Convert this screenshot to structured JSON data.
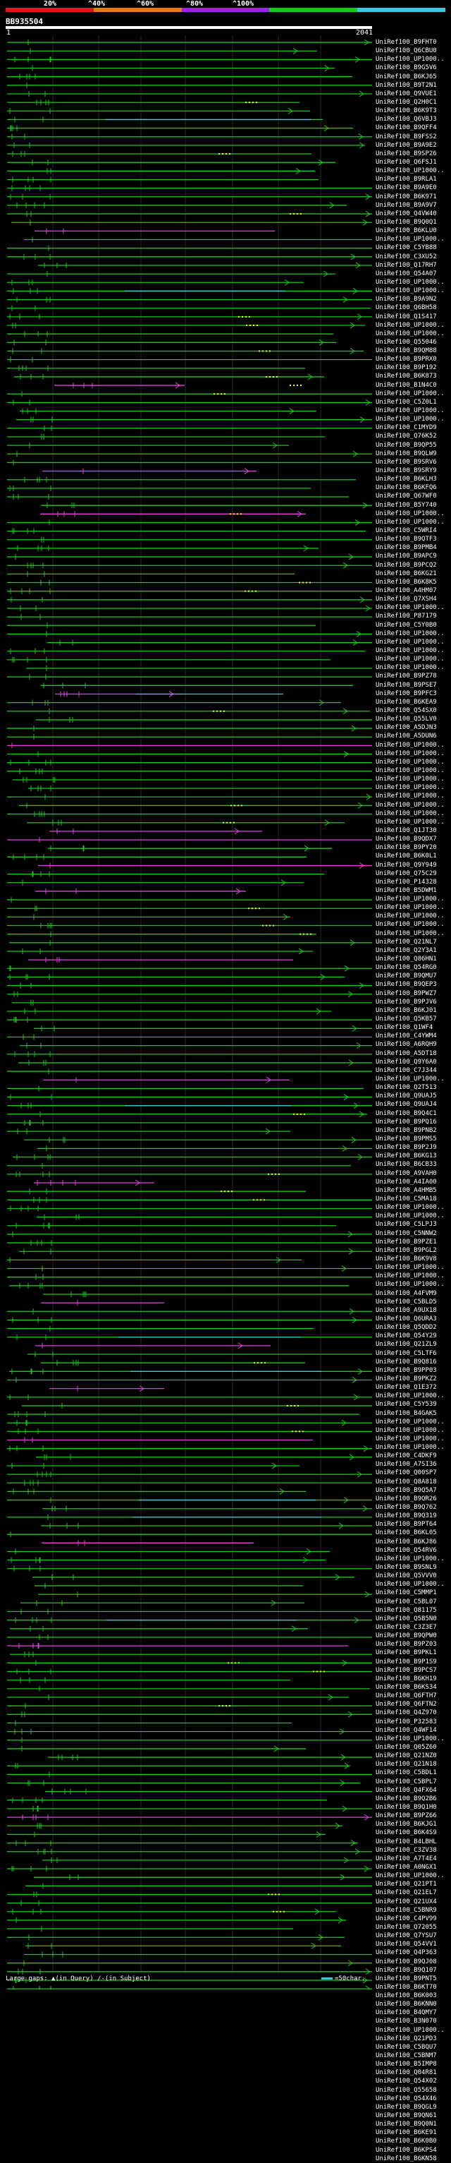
{
  "scale": {
    "ticks": [
      "20%",
      "^40%",
      "^60%",
      "^80%",
      "^100%"
    ],
    "colors": [
      "#e8141c",
      "#e87814",
      "#a020f0",
      "#18c818",
      "#3ec6e0"
    ]
  },
  "query": {
    "id": "BB935504",
    "start": "1",
    "end": "2041"
  },
  "colors": {
    "hit": "#18c818",
    "gap": "#e040e0",
    "ins": "#3ec6e0",
    "grid": "#555",
    "dot": "#ffff00"
  },
  "hits": [
    "UniRef100_B9FHT0",
    "UniRef100_Q6CBU0",
    "UniRef100_UP1000..",
    "UniRef100_B9G5V6",
    "UniRef100_B6KJ65",
    "UniRef100_B9T2N1",
    "UniRef100_Q9VUE1",
    "UniRef100_Q2H0C1",
    "UniRef100_B6K9T3",
    "UniRef100_Q6VBJ3",
    "UniRef100_B9QFF4",
    "UniRef100_B9FSS2",
    "UniRef100_B9A9E2",
    "UniRef100_B9SP26",
    "UniRef100_Q6FSJ1",
    "UniRef100_UP1000..",
    "UniRef100_B9RLA1",
    "UniRef100_B9A9E0",
    "UniRef100_B6K971",
    "UniRef100_B9A9V7",
    "UniRef100_Q4VW40",
    "UniRef100_B9Q0Q1",
    "UniRef100_B6KLU0",
    "UniRef100_UP1000..",
    "UniRef100_C5YB88",
    "UniRef100_C3XU52",
    "UniRef100_Q17RH7",
    "UniRef100_Q54A07",
    "UniRef100_UP1000..",
    "UniRef100_UP1000..",
    "UniRef100_B9A9N2",
    "UniRef100_Q6BH58",
    "UniRef100_Q1S417",
    "UniRef100_UP1000..",
    "UniRef100_UP1000..",
    "UniRef100_Q55046",
    "UniRef100_B9QM88",
    "UniRef100_B9PRX0",
    "UniRef100_B9P192",
    "UniRef100_B6K873",
    "UniRef100_B1N4C0",
    "UniRef100_UP1000..",
    "UniRef100_C5Z0L1",
    "UniRef100_UP1000..",
    "UniRef100_UP1000..",
    "UniRef100_C1MYD9",
    "UniRef100_Q76K52",
    "UniRef100_B9QP55",
    "UniRef100_B9QLW9",
    "UniRef100_B9SRV6",
    "UniRef100_B9SRY9",
    "UniRef100_B6KLH3",
    "UniRef100_B6KFQ6",
    "UniRef100_Q67WF0",
    "UniRef100_B5Y740",
    "UniRef100_UP1000..",
    "UniRef100_UP1000..",
    "UniRef100_C5WRI4",
    "UniRef100_B9QTF3",
    "UniRef100_B9PMB4",
    "UniRef100_B9APC9",
    "UniRef100_B9PCQ2",
    "UniRef100_B6KG21",
    "UniRef100_B6K8K5",
    "UniRef100_A4HM07",
    "UniRef100_Q7XSH4",
    "UniRef100_UP1000..",
    "UniRef100_P87179",
    "UniRef100_C5Y0B0",
    "UniRef100_UP1000..",
    "UniRef100_UP1000..",
    "UniRef100_UP1000..",
    "UniRef100_UP1000..",
    "UniRef100_UP1000..",
    "UniRef100_B9PZ78",
    "UniRef100_B9PSE7",
    "UniRef100_B9PFC3",
    "UniRef100_B6KEA9",
    "UniRef100_Q54SX0",
    "UniRef100_Q55LV0",
    "UniRef100_A5DJN3",
    "UniRef100_A5DUN6",
    "UniRef100_UP1000..",
    "UniRef100_UP1000..",
    "UniRef100_UP1000..",
    "UniRef100_UP1000..",
    "UniRef100_UP1000..",
    "UniRef100_UP1000..",
    "UniRef100_UP1000..",
    "UniRef100_UP1000..",
    "UniRef100_UP1000..",
    "UniRef100_UP1000..",
    "UniRef100_Q1JT30",
    "UniRef100_B9QDX7",
    "UniRef100_B9PY20",
    "UniRef100_B6K0L1",
    "UniRef100_Q9Y949",
    "UniRef100_Q75C29",
    "UniRef100_P14328",
    "UniRef100_B5DWM1",
    "UniRef100_UP1000..",
    "UniRef100_UP1000..",
    "UniRef100_UP1000..",
    "UniRef100_UP1000..",
    "UniRef100_UP1000..",
    "UniRef100_Q21NL7",
    "UniRef100_Q2Y3A1",
    "UniRef100_Q86HN1",
    "UniRef100_Q54RG0",
    "UniRef100_B9QMU7",
    "UniRef100_B9QEP3",
    "UniRef100_B9PWZ7",
    "UniRef100_B9PJV6",
    "UniRef100_B6KJ01",
    "UniRef100_Q5KB57",
    "UniRef100_Q1WF4",
    "UniRef100_C4YWM4",
    "UniRef100_A6RQH9",
    "UniRef100_A5DT18",
    "UniRef100_Q9Y6A0",
    "UniRef100_C7J344",
    "UniRef100_UP1000..",
    "UniRef100_Q2T513",
    "UniRef100_Q9UAJ5",
    "UniRef100_Q9UAJ4",
    "UniRef100_B9Q4C1",
    "UniRef100_B9PQ16",
    "UniRef100_B9PNB2",
    "UniRef100_B9PMS5",
    "UniRef100_B9P2J9",
    "UniRef100_B6KG13",
    "UniRef100_B6CB33",
    "UniRef100_A9VAH0",
    "UniRef100_A4IA00",
    "UniRef100_A4HMB5",
    "UniRef100_C5MA18",
    "UniRef100_UP1000..",
    "UniRef100_UP1000..",
    "UniRef100_C5LPJ3",
    "UniRef100_C5NNW2",
    "UniRef100_B9PZE1",
    "UniRef100_B9PGL2",
    "UniRef100_B6K9V8",
    "UniRef100_UP1000..",
    "UniRef100_UP1000..",
    "UniRef100_UP1000..",
    "UniRef100_A4FVM9",
    "UniRef100_C5BLD5",
    "UniRef100_A9UX18",
    "UniRef100_Q6URA3",
    "UniRef100_Q5QDD2",
    "UniRef100_Q54Y29",
    "UniRef100_Q21ZL9",
    "UniRef100_C5LTF6",
    "UniRef100_B9Q816",
    "UniRef100_B9PP03",
    "UniRef100_B9PKZ2",
    "UniRef100_Q1E372",
    "UniRef100_UP1000..",
    "UniRef100_C5Y539",
    "UniRef100_B4GAK5",
    "UniRef100_UP1000..",
    "UniRef100_UP1000..",
    "UniRef100_UP1000..",
    "UniRef100_UP1000..",
    "UniRef100_C4DKF9",
    "UniRef100_A7SI36",
    "UniRef100_Q00SP7",
    "UniRef100_Q8A818",
    "UniRef100_B9Q5A7",
    "UniRef100_B9QR26",
    "UniRef100_B9Q762",
    "UniRef100_B9Q319",
    "UniRef100_B9PT64",
    "UniRef100_B6KL05",
    "UniRef100_B6KJ86",
    "UniRef100_Q54RV6",
    "UniRef100_UP1000..",
    "UniRef100_B9SNL9",
    "UniRef100_Q5VVV0",
    "UniRef100_UP1000..",
    "UniRef100_C5MMP1",
    "UniRef100_C5BL07",
    "UniRef100_Q81175",
    "UniRef100_Q5B5N0",
    "UniRef100_C3Z3E7",
    "UniRef100_B9QPW0",
    "UniRef100_B9PZ03",
    "UniRef100_B9PKL1",
    "UniRef100_B9P1S9",
    "UniRef100_B9PCS7",
    "UniRef100_B6KH19",
    "UniRef100_B6KS34",
    "UniRef100_Q6FTH7",
    "UniRef100_Q6FTN2",
    "UniRef100_Q4Z970",
    "UniRef100_P32583",
    "UniRef100_Q4WF14",
    "UniRef100_UP1000..",
    "UniRef100_Q05Z60",
    "UniRef100_Q21NZ0",
    "UniRef100_Q21N18",
    "UniRef100_C5BDL1",
    "UniRef100_C5BPL7",
    "UniRef100_Q4FX64",
    "UniRef100_B9Q2B6",
    "UniRef100_B9Q1H0",
    "UniRef100_B9PZ66",
    "UniRef100_B6KJG1",
    "UniRef100_B6K4S9",
    "UniRef100_B4LBHL",
    "UniRef100_C3ZV38",
    "UniRef100_A7T4E4",
    "UniRef100_A0NGX1",
    "UniRef100_UP1000..",
    "UniRef100_Q21PT1",
    "UniRef100_Q21EL7",
    "UniRef100_Q21UX4",
    "UniRef100_C5BNR9",
    "UniRef100_C4PV99",
    "UniRef100_Q72055",
    "UniRef100_Q7YSU7",
    "UniRef100_Q54VV1",
    "UniRef100_Q4P363",
    "UniRef100_B9QJ08",
    "UniRef100_B9Q107",
    "UniRef100_B9PNT5",
    "UniRef100_B6KT70",
    "UniRef100_B6K003",
    "UniRef100_B6KNN0",
    "UniRef100_B4QMY7",
    "UniRef100_B3N070",
    "UniRef100_UP1000..",
    "UniRef100_Q21PD3",
    "UniRef100_C5BQU7",
    "UniRef100_C5BNM7",
    "UniRef100_B5IMP8",
    "UniRef100_Q04R81",
    "UniRef100_Q54X02",
    "UniRef100_Q55658",
    "UniRef100_Q54X46",
    "UniRef100_B9QGL9",
    "UniRef100_B9QN61",
    "UniRef100_B9Q0N1",
    "UniRef100_B6KE91",
    "UniRef100_B6K0B0",
    "UniRef100_B6KPS4",
    "UniRef100_B6KN58"
  ],
  "footer": {
    "large_gaps_label": "Large gaps:",
    "query_gap_text": "(in Query)",
    "subject_gap_text": "(in Subject)",
    "scale_text": "=50char."
  }
}
